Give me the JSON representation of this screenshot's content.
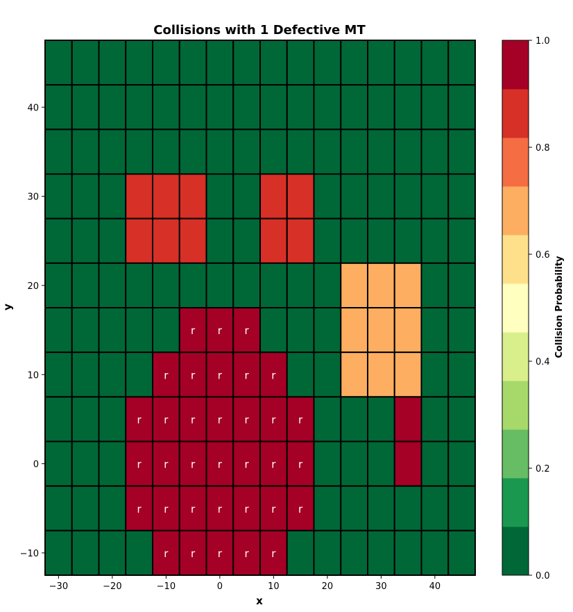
{
  "chart_data": {
    "type": "heatmap",
    "title": "Collisions with 1 Defective MT",
    "xlabel": "x",
    "ylabel": "y",
    "x_centers": [
      -30,
      -25,
      -20,
      -15,
      -10,
      -5,
      0,
      5,
      10,
      15,
      20,
      25,
      30,
      35,
      40,
      45
    ],
    "y_centers": [
      45,
      40,
      35,
      30,
      25,
      20,
      15,
      10,
      5,
      0,
      -5,
      -10
    ],
    "cell_size": 5,
    "xlim": [
      -32.5,
      47.5
    ],
    "ylim": [
      -12.5,
      47.5
    ],
    "x_ticks": [
      -30,
      -20,
      -10,
      0,
      10,
      20,
      30,
      40
    ],
    "y_ticks": [
      -10,
      0,
      10,
      20,
      30,
      40
    ],
    "values": [
      [
        0,
        0,
        0,
        0,
        0,
        0,
        0,
        0,
        0,
        0,
        0,
        0,
        0,
        0,
        0,
        0
      ],
      [
        0,
        0,
        0,
        0,
        0,
        0,
        0,
        0,
        0,
        0,
        0,
        0,
        0,
        0,
        0,
        0
      ],
      [
        0,
        0,
        0,
        0,
        0,
        0,
        0,
        0,
        0,
        0,
        0,
        0,
        0,
        0,
        0,
        0
      ],
      [
        0,
        0,
        0,
        0.85,
        0.85,
        0.85,
        0,
        0,
        0.85,
        0.85,
        0,
        0,
        0,
        0,
        0,
        0
      ],
      [
        0,
        0,
        0,
        0.85,
        0.85,
        0.85,
        0,
        0,
        0.85,
        0.85,
        0,
        0,
        0,
        0,
        0,
        0
      ],
      [
        0,
        0,
        0,
        0,
        0,
        0,
        0,
        0,
        0,
        0,
        0,
        0.7,
        0.7,
        0.7,
        0,
        0
      ],
      [
        0,
        0,
        0,
        0,
        0,
        1,
        1,
        1,
        0,
        0,
        0,
        0.7,
        0.7,
        0.7,
        0,
        0
      ],
      [
        0,
        0,
        0,
        0,
        1,
        1,
        1,
        1,
        1,
        0,
        0,
        0.7,
        0.7,
        0.7,
        0,
        0
      ],
      [
        0,
        0,
        0,
        1,
        1,
        1,
        1,
        1,
        1,
        1,
        0,
        0,
        0,
        1,
        0,
        0
      ],
      [
        0,
        0,
        0,
        1,
        1,
        1,
        1,
        1,
        1,
        1,
        0,
        0,
        0,
        1,
        0,
        0
      ],
      [
        0,
        0,
        0,
        1,
        1,
        1,
        1,
        1,
        1,
        1,
        0,
        0,
        0,
        0,
        0,
        0
      ],
      [
        0,
        0,
        0,
        0,
        1,
        1,
        1,
        1,
        1,
        0,
        0,
        0,
        0,
        0,
        0,
        0
      ]
    ],
    "cell_marks": [
      [
        "",
        "",
        "",
        "",
        "",
        "",
        "",
        "",
        "",
        "",
        "",
        "",
        "",
        "",
        "",
        ""
      ],
      [
        "",
        "",
        "",
        "",
        "",
        "",
        "",
        "",
        "",
        "",
        "",
        "",
        "",
        "",
        "",
        ""
      ],
      [
        "",
        "",
        "",
        "",
        "",
        "",
        "",
        "",
        "",
        "",
        "",
        "",
        "",
        "",
        "",
        ""
      ],
      [
        "",
        "",
        "",
        "",
        "",
        "",
        "",
        "",
        "",
        "",
        "",
        "",
        "",
        "",
        "",
        ""
      ],
      [
        "",
        "",
        "",
        "",
        "",
        "",
        "",
        "",
        "",
        "",
        "",
        "",
        "",
        "",
        "",
        ""
      ],
      [
        "",
        "",
        "",
        "",
        "",
        "",
        "",
        "",
        "",
        "",
        "",
        "",
        "",
        "",
        "",
        ""
      ],
      [
        "",
        "",
        "",
        "",
        "",
        "r",
        "r",
        "r",
        "",
        "",
        "",
        "",
        "",
        "",
        "",
        ""
      ],
      [
        "",
        "",
        "",
        "",
        "r",
        "r",
        "r",
        "r",
        "r",
        "",
        "",
        "",
        "",
        "",
        "",
        ""
      ],
      [
        "",
        "",
        "",
        "r",
        "r",
        "r",
        "r",
        "r",
        "r",
        "r",
        "",
        "",
        "",
        "",
        "",
        ""
      ],
      [
        "",
        "",
        "",
        "r",
        "r",
        "r",
        "r",
        "r",
        "r",
        "r",
        "",
        "",
        "",
        "",
        "",
        ""
      ],
      [
        "",
        "",
        "",
        "r",
        "r",
        "r",
        "r",
        "r",
        "r",
        "r",
        "",
        "",
        "",
        "",
        "",
        ""
      ],
      [
        "",
        "",
        "",
        "",
        "r",
        "r",
        "r",
        "r",
        "r",
        "",
        "",
        "",
        "",
        "",
        "",
        ""
      ]
    ],
    "colorbar": {
      "label": "Collision Probability",
      "range": [
        0.0,
        1.0
      ],
      "ticks": [
        "0.0",
        "0.2",
        "0.4",
        "0.6",
        "0.8",
        "1.0"
      ],
      "colors": [
        "#006837",
        "#1a9850",
        "#66bd63",
        "#a6d96a",
        "#d9ef8b",
        "#ffffbf",
        "#fee08b",
        "#fdae61",
        "#f46d43",
        "#d73027",
        "#a50026"
      ]
    },
    "grid": false
  }
}
